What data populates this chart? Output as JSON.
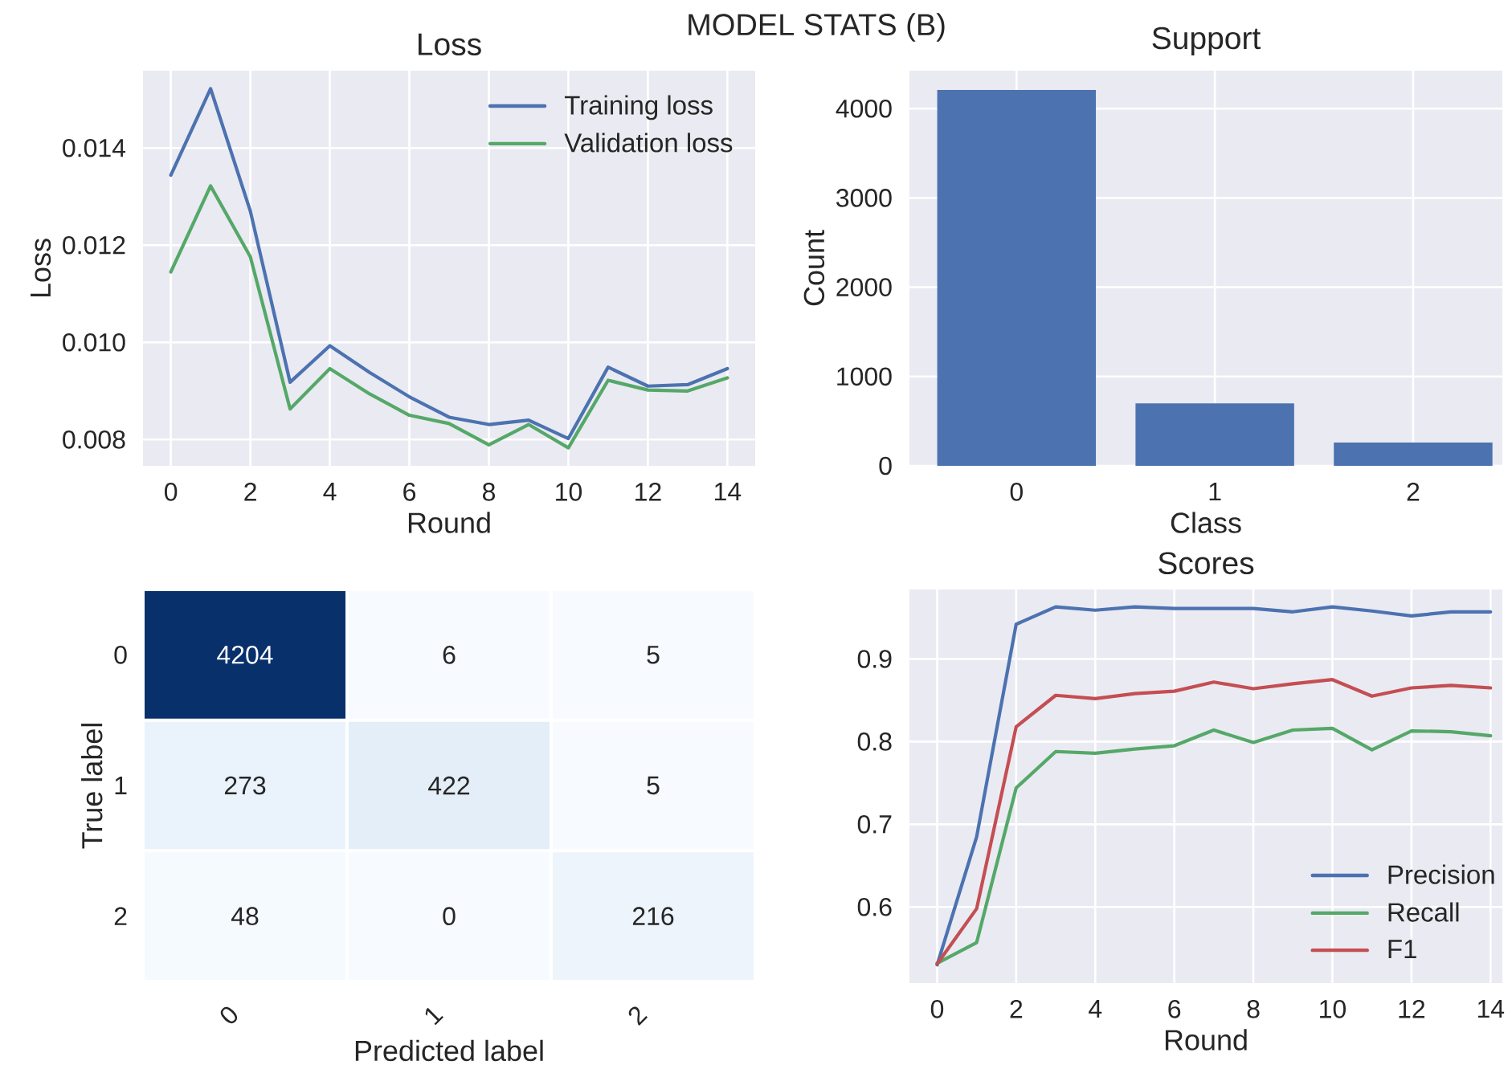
{
  "chart_data": [
    {
      "type": "other",
      "title": "MODEL STATS (B)"
    },
    {
      "type": "line",
      "title": "Loss",
      "xlabel": "Round",
      "ylabel": "Loss",
      "x": [
        0,
        1,
        2,
        3,
        4,
        5,
        6,
        7,
        8,
        9,
        10,
        11,
        12,
        13,
        14
      ],
      "xlim": [
        -0.7,
        14.7
      ],
      "xticks": [
        0,
        2,
        4,
        6,
        8,
        10,
        12,
        14
      ],
      "ylim": [
        0.00746,
        0.01559
      ],
      "yticks": [
        0.008,
        {
          "value": 0.01,
          "label": "0.010"
        },
        0.012,
        0.014
      ],
      "grid": true,
      "legend": "top right",
      "series": [
        {
          "name": "Training loss",
          "color": "#4c72b0",
          "values": [
            0.01344,
            0.01522,
            0.0127,
            0.00918,
            0.00993,
            0.00938,
            0.00888,
            0.00846,
            0.00831,
            0.0084,
            0.00802,
            0.00949,
            0.0091,
            0.00913,
            0.00946
          ]
        },
        {
          "name": "Validation loss",
          "color": "#55a868",
          "values": [
            0.01145,
            0.01322,
            0.01176,
            0.00863,
            0.00946,
            0.00894,
            0.0085,
            0.00833,
            0.00789,
            0.00831,
            0.00783,
            0.00922,
            0.00902,
            0.009,
            0.00927
          ]
        }
      ]
    },
    {
      "type": "bar",
      "title": "Support",
      "xlabel": "Class",
      "ylabel": "Count",
      "categories": [
        "0",
        "1",
        "2"
      ],
      "values": [
        4210,
        700,
        260
      ],
      "color": "#4c72b0",
      "ylim": [
        0,
        4425
      ],
      "yticks": [
        0,
        1000,
        2000,
        3000,
        4000
      ],
      "grid": true
    },
    {
      "type": "heatmap",
      "xlabel": "Predicted label",
      "ylabel": "True label",
      "categories": [
        "0",
        "1",
        "2"
      ],
      "y_categories": [
        "0",
        "1",
        "2"
      ],
      "cells": [
        [
          4204,
          6,
          5
        ],
        [
          273,
          422,
          5
        ],
        [
          48,
          0,
          216
        ]
      ],
      "data_labels": true
    },
    {
      "type": "line",
      "title": "Scores",
      "xlabel": "Round",
      "x": [
        0,
        1,
        2,
        3,
        4,
        5,
        6,
        7,
        8,
        9,
        10,
        11,
        12,
        13,
        14
      ],
      "xlim": [
        -0.7,
        14.3
      ],
      "xticks": [
        0,
        2,
        4,
        6,
        8,
        10,
        12,
        14
      ],
      "ylim": [
        0.508,
        0.984
      ],
      "yticks": [
        0.6,
        0.7,
        0.8,
        0.9
      ],
      "grid": true,
      "legend": "bottom right",
      "series": [
        {
          "name": "Precision",
          "color": "#4c72b0",
          "values": [
            0.53,
            0.685,
            0.942,
            0.963,
            0.959,
            0.963,
            0.961,
            0.961,
            0.961,
            0.957,
            0.963,
            0.958,
            0.952,
            0.957,
            0.957
          ]
        },
        {
          "name": "Recall",
          "color": "#55a868",
          "values": [
            0.532,
            0.557,
            0.744,
            0.788,
            0.786,
            0.791,
            0.795,
            0.814,
            0.799,
            0.814,
            0.816,
            0.79,
            0.813,
            0.812,
            0.807
          ]
        },
        {
          "name": "F1",
          "color": "#c44e52",
          "values": [
            0.531,
            0.598,
            0.818,
            0.856,
            0.852,
            0.858,
            0.861,
            0.872,
            0.864,
            0.87,
            0.875,
            0.855,
            0.865,
            0.868,
            0.865
          ]
        }
      ]
    }
  ]
}
